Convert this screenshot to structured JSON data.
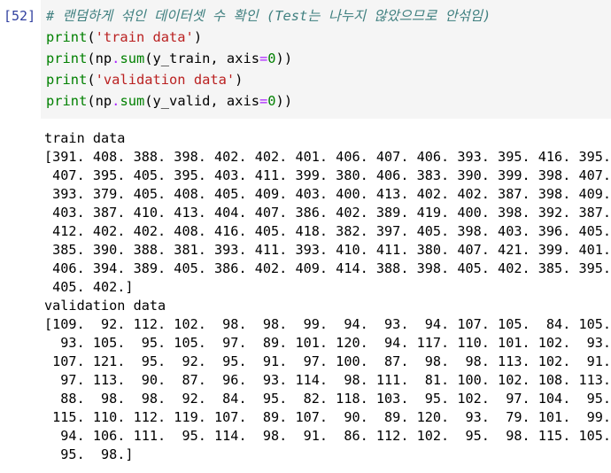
{
  "cell": {
    "prompt": "[52]",
    "code_lines": [
      [
        {
          "t": "# 랜덤하게 섞인 데이터셋 수 확인 (Test는 나누지 않았으므로 안섞임)",
          "c": "comment"
        }
      ],
      [
        {
          "t": "print",
          "c": "builtin"
        },
        {
          "t": "(",
          "c": ""
        },
        {
          "t": "'train data'",
          "c": "str"
        },
        {
          "t": ")",
          "c": ""
        }
      ],
      [
        {
          "t": "print",
          "c": "builtin"
        },
        {
          "t": "(np",
          "c": ""
        },
        {
          "t": ".",
          "c": "op"
        },
        {
          "t": "sum",
          "c": "builtin"
        },
        {
          "t": "(y_train, axis",
          "c": ""
        },
        {
          "t": "=",
          "c": "op"
        },
        {
          "t": "0",
          "c": "num"
        },
        {
          "t": "))",
          "c": ""
        }
      ],
      [
        {
          "t": "print",
          "c": "builtin"
        },
        {
          "t": "(",
          "c": ""
        },
        {
          "t": "'validation data'",
          "c": "str"
        },
        {
          "t": ")",
          "c": ""
        }
      ],
      [
        {
          "t": "print",
          "c": "builtin"
        },
        {
          "t": "(np",
          "c": ""
        },
        {
          "t": ".",
          "c": "op"
        },
        {
          "t": "sum",
          "c": "builtin"
        },
        {
          "t": "(y_valid, axis",
          "c": ""
        },
        {
          "t": "=",
          "c": "op"
        },
        {
          "t": "0",
          "c": "num"
        },
        {
          "t": "))",
          "c": ""
        }
      ]
    ],
    "output_lines": [
      "train data",
      "[391. 408. 388. 398. 402. 402. 401. 406. 407. 406. 393. 395. 416. 395.",
      " 407. 395. 405. 395. 403. 411. 399. 380. 406. 383. 390. 399. 398. 407.",
      " 393. 379. 405. 408. 405. 409. 403. 400. 413. 402. 402. 387. 398. 409.",
      " 403. 387. 410. 413. 404. 407. 386. 402. 389. 419. 400. 398. 392. 387.",
      " 412. 402. 402. 408. 416. 405. 418. 382. 397. 405. 398. 403. 396. 405.",
      " 385. 390. 388. 381. 393. 411. 393. 410. 411. 380. 407. 421. 399. 401.",
      " 406. 394. 389. 405. 386. 402. 409. 414. 388. 398. 405. 402. 385. 395.",
      " 405. 402.]",
      "validation data",
      "[109.  92. 112. 102.  98.  98.  99.  94.  93.  94. 107. 105.  84. 105.",
      "  93. 105.  95. 105.  97.  89. 101. 120.  94. 117. 110. 101. 102.  93.",
      " 107. 121.  95.  92.  95.  91.  97. 100.  87.  98.  98. 113. 102.  91.",
      "  97. 113.  90.  87.  96.  93. 114.  98. 111.  81. 100. 102. 108. 113.",
      "  88.  98.  98.  92.  84.  95.  82. 118. 103.  95. 102.  97. 104.  95.",
      " 115. 110. 112. 119. 107.  89. 107.  90.  89. 120.  93.  79. 101.  99.",
      "  94. 106. 111.  95. 114.  98.  91.  86. 112. 102.  95.  98. 115. 105.",
      "  95.  98.]"
    ]
  }
}
